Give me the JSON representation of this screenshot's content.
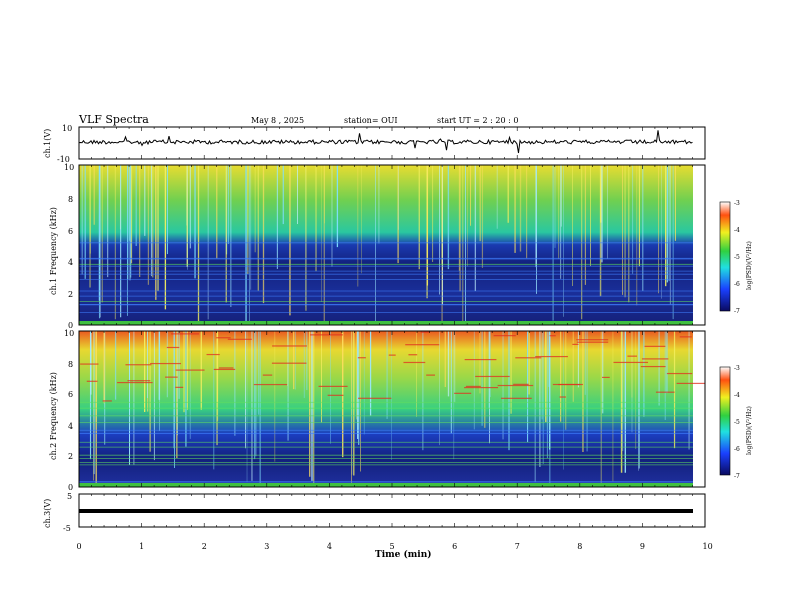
{
  "header": {
    "title": "VLF Spectra",
    "date": "May 8 , 2025",
    "station": "station= OUI",
    "start": "start UT = 2 : 20 : 0"
  },
  "chart_data": [
    {
      "type": "line",
      "panel": "ch1-waveform",
      "ylabel": "ch.1(V)",
      "ylim": [
        -10,
        10
      ],
      "ytick_labels": [
        "10",
        "-10"
      ],
      "x": [
        0,
        10
      ],
      "note_series": "noisy baseline near 0 V with sparse spikes",
      "series": [
        {
          "values": [
            0,
            0
          ]
        }
      ]
    },
    {
      "type": "heatmap",
      "panel": "ch1-spectrogram",
      "ylabel": "ch.1 Frequency (kHz)",
      "ylim": [
        0,
        10
      ],
      "ytick_labels": [
        "0",
        "2",
        "4",
        "6",
        "8",
        "10"
      ],
      "xlim": [
        0,
        10
      ],
      "colorbar": {
        "label": "log(PSD)(V²/Hz)",
        "range": [
          -7,
          -3
        ],
        "tick_labels": [
          "-3",
          "-4",
          "-5",
          "-6",
          "-7"
        ]
      }
    },
    {
      "type": "heatmap",
      "panel": "ch2-spectrogram",
      "ylabel": "ch.2 Frequency (kHz)",
      "ylim": [
        0,
        10
      ],
      "ytick_labels": [
        "0",
        "2",
        "4",
        "6",
        "8",
        "10"
      ],
      "xlim": [
        0,
        10
      ],
      "colorbar": {
        "label": "log(PSD)(V²/Hz)",
        "range": [
          -7,
          -3
        ],
        "tick_labels": [
          "-3",
          "-4",
          "-5",
          "-6",
          "-7"
        ]
      }
    },
    {
      "type": "line",
      "panel": "ch3-waveform",
      "ylabel": "ch.3(V)",
      "ylim": [
        -5,
        5
      ],
      "ytick_labels": [
        "5",
        "-5"
      ],
      "series": [
        {
          "values": [
            -1,
            -1
          ]
        }
      ]
    }
  ],
  "xaxis": {
    "label": "Time (min)",
    "xlim": [
      0,
      10
    ],
    "tick_labels": [
      "0",
      "1",
      "2",
      "3",
      "4",
      "5",
      "6",
      "7",
      "8",
      "9",
      "10"
    ]
  },
  "colors": {
    "low": "#1a1a8c",
    "mid": "#33cc66",
    "high": "#e8e030",
    "max": "#dd2222"
  }
}
